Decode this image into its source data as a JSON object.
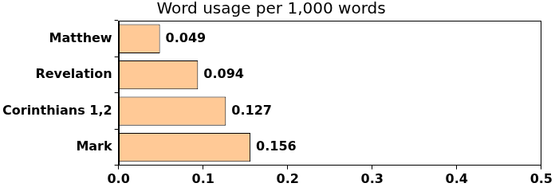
{
  "chart_data": {
    "type": "bar",
    "orientation": "horizontal",
    "title": "Word usage per 1,000 words",
    "categories": [
      "Matthew",
      "Revelation",
      "Corinthians 1,2",
      "Mark"
    ],
    "values": [
      0.049,
      0.094,
      0.127,
      0.156
    ],
    "color": "#ffc996",
    "xlim": [
      0,
      0.5
    ],
    "xticks": [
      {
        "value": 0,
        "label": "0.0"
      },
      0.1,
      0.2,
      0.3,
      0.4,
      0.5
    ],
    "grid": false,
    "data_labels": true
  }
}
